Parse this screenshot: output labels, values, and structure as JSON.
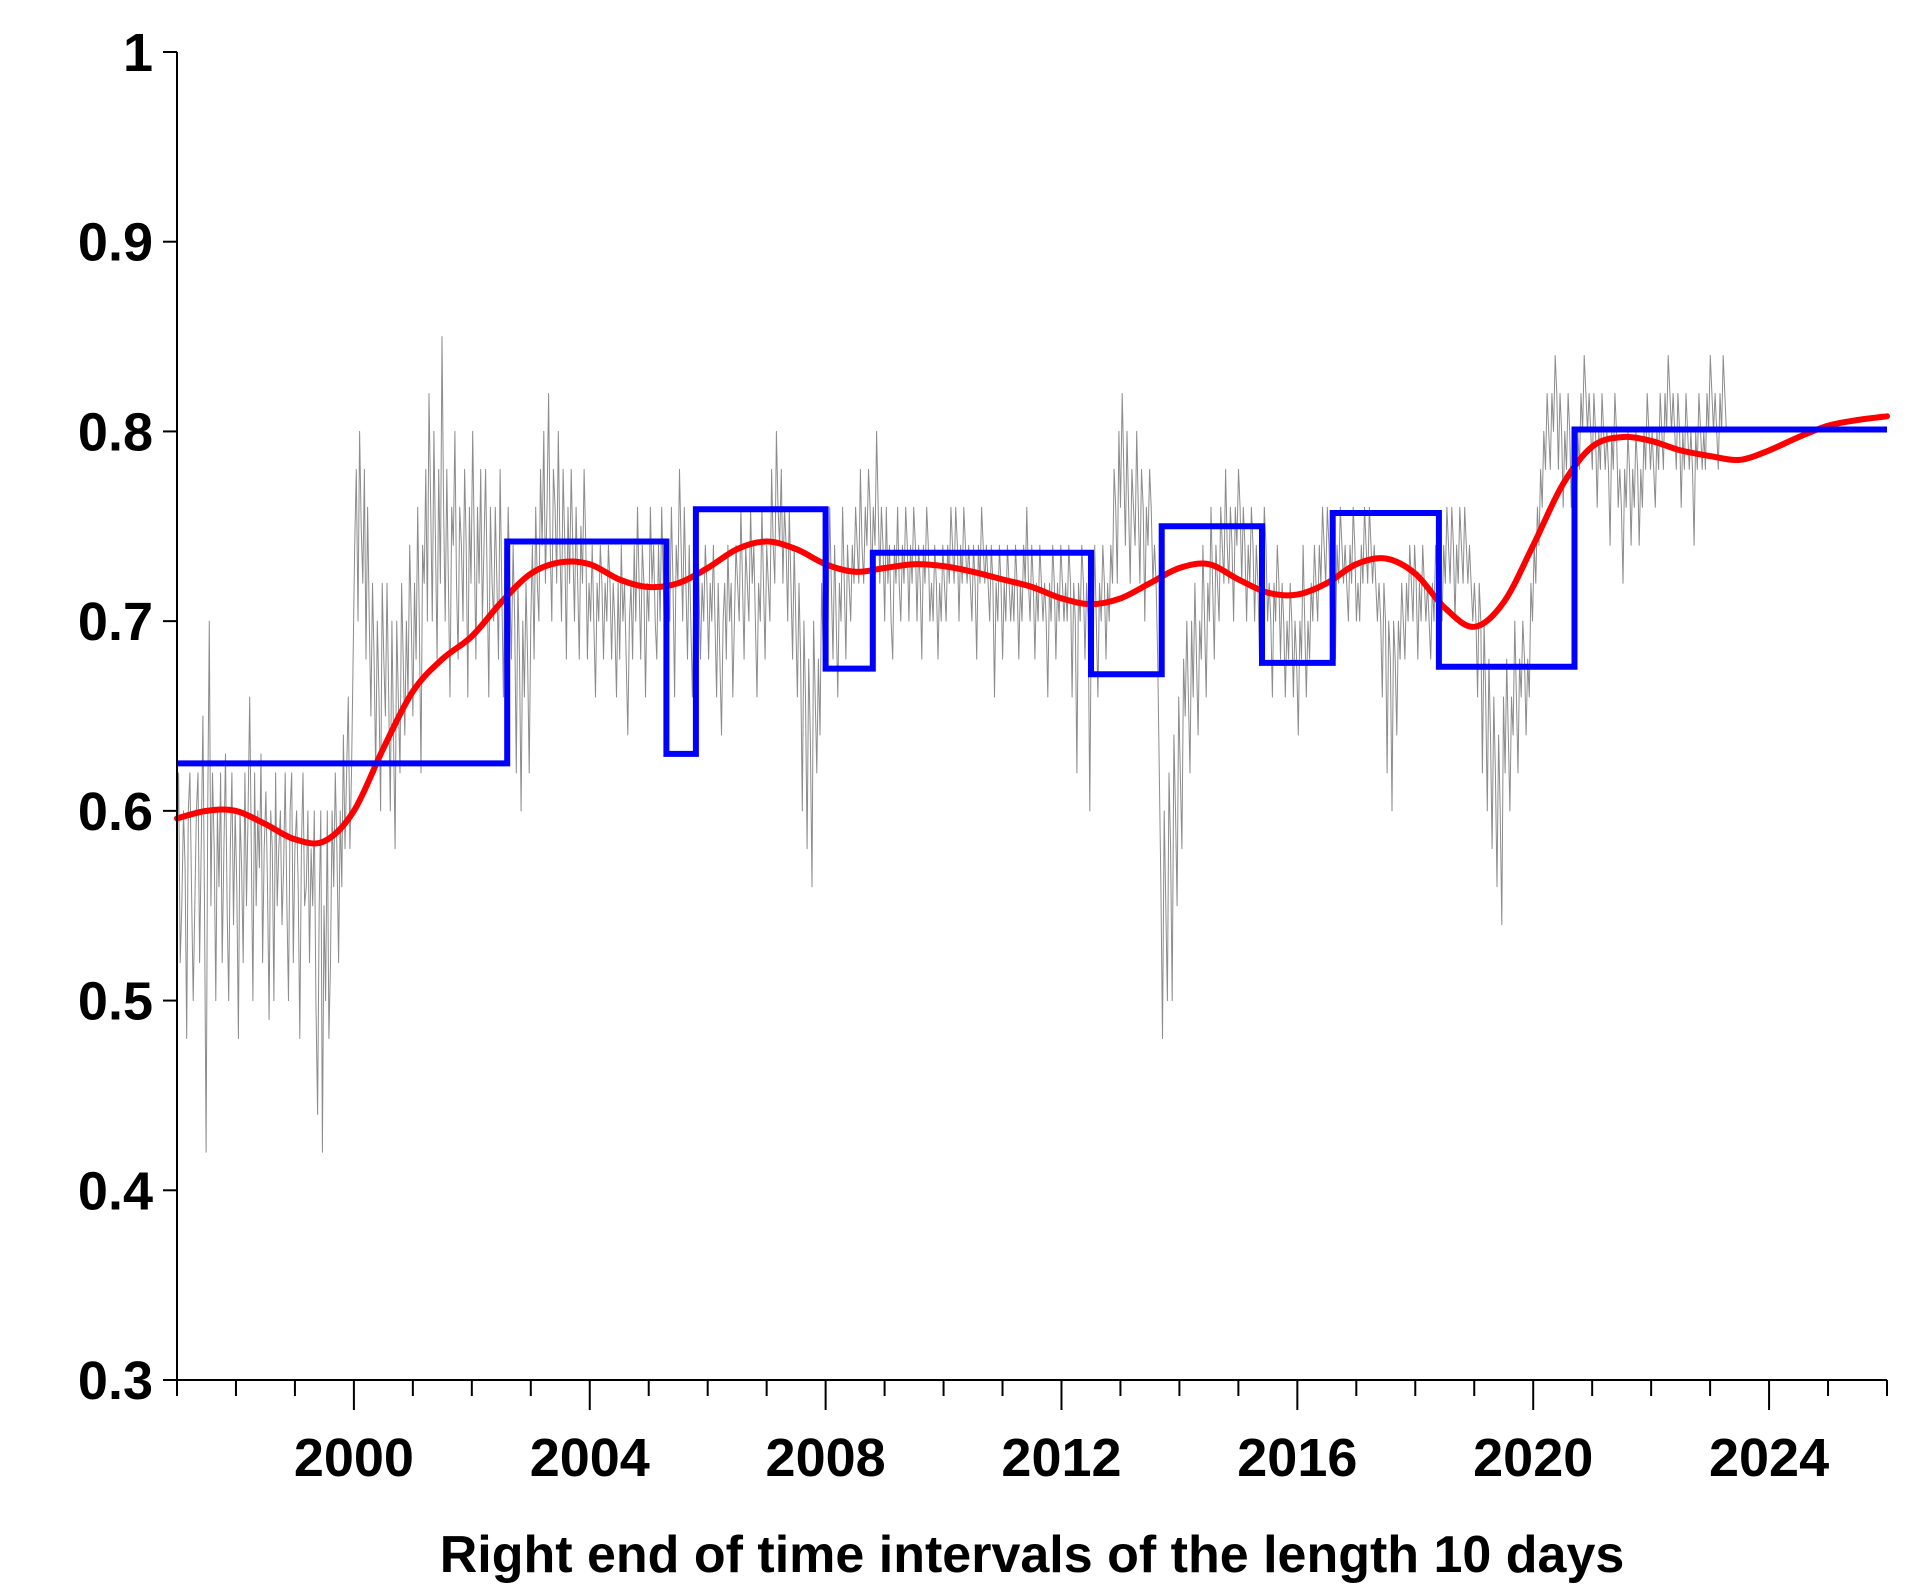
{
  "chart_data": {
    "type": "line",
    "title": "",
    "xlabel": "Right end of time intervals of the length 10 days",
    "ylabel": "",
    "xlim": [
      1997.0,
      2026.0
    ],
    "ylim": [
      0.3,
      1.0
    ],
    "grid": false,
    "legend": "none",
    "x_ticks": [
      2000,
      2004,
      2008,
      2012,
      2016,
      2020,
      2024
    ],
    "x_tick_labels": [
      "2000",
      "2004",
      "2008",
      "2012",
      "2016",
      "2020",
      "2024"
    ],
    "x_minor_step": 1,
    "y_ticks": [
      0.3,
      0.4,
      0.5,
      0.6,
      0.7,
      0.8,
      0.9,
      1.0
    ],
    "y_tick_labels": [
      "0.3",
      "0.4",
      "0.5",
      "0.6",
      "0.7",
      "0.8",
      "0.9",
      "1"
    ],
    "colors": {
      "raw": "#8c8c8c",
      "smooth": "#ff0000",
      "step": "#0000ff",
      "axis": "#000000"
    },
    "series": [
      {
        "kind": "raw",
        "color": "#8c8c8c",
        "x_start": 1997.0,
        "x_step": 0.0274,
        "values": [
          0.58,
          0.62,
          0.52,
          0.55,
          0.6,
          0.57,
          0.48,
          0.6,
          0.62,
          0.56,
          0.5,
          0.55,
          0.6,
          0.62,
          0.52,
          0.58,
          0.65,
          0.55,
          0.42,
          0.6,
          0.7,
          0.55,
          0.62,
          0.58,
          0.5,
          0.6,
          0.56,
          0.62,
          0.52,
          0.58,
          0.63,
          0.55,
          0.5,
          0.58,
          0.62,
          0.54,
          0.6,
          0.56,
          0.48,
          0.6,
          0.57,
          0.52,
          0.62,
          0.55,
          0.6,
          0.66,
          0.58,
          0.5,
          0.62,
          0.55,
          0.6,
          0.57,
          0.63,
          0.52,
          0.58,
          0.61,
          0.56,
          0.49,
          0.6,
          0.58,
          0.5,
          0.62,
          0.55,
          0.58,
          0.6,
          0.54,
          0.57,
          0.62,
          0.55,
          0.5,
          0.6,
          0.62,
          0.52,
          0.58,
          0.6,
          0.56,
          0.48,
          0.58,
          0.62,
          0.55,
          0.56,
          0.6,
          0.52,
          0.58,
          0.55,
          0.6,
          0.5,
          0.44,
          0.55,
          0.6,
          0.42,
          0.55,
          0.5,
          0.6,
          0.48,
          0.52,
          0.6,
          0.56,
          0.62,
          0.58,
          0.52,
          0.6,
          0.56,
          0.64,
          0.58,
          0.62,
          0.66,
          0.58,
          0.62,
          0.68,
          0.74,
          0.78,
          0.7,
          0.8,
          0.75,
          0.72,
          0.78,
          0.68,
          0.76,
          0.7,
          0.65,
          0.72,
          0.68,
          0.62,
          0.7,
          0.66,
          0.6,
          0.72,
          0.68,
          0.65,
          0.72,
          0.66,
          0.6,
          0.7,
          0.64,
          0.58,
          0.7,
          0.66,
          0.62,
          0.72,
          0.68,
          0.64,
          0.7,
          0.66,
          0.74,
          0.7,
          0.65,
          0.72,
          0.68,
          0.76,
          0.7,
          0.62,
          0.74,
          0.72,
          0.78,
          0.7,
          0.82,
          0.76,
          0.7,
          0.8,
          0.74,
          0.68,
          0.78,
          0.72,
          0.85,
          0.76,
          0.7,
          0.78,
          0.72,
          0.66,
          0.76,
          0.74,
          0.8,
          0.72,
          0.68,
          0.76,
          0.74,
          0.7,
          0.78,
          0.74,
          0.66,
          0.76,
          0.72,
          0.8,
          0.74,
          0.68,
          0.76,
          0.72,
          0.78,
          0.7,
          0.74,
          0.78,
          0.72,
          0.66,
          0.76,
          0.72,
          0.7,
          0.76,
          0.72,
          0.68,
          0.78,
          0.72,
          0.66,
          0.74,
          0.7,
          0.76,
          0.72,
          0.68,
          0.74,
          0.7,
          0.62,
          0.72,
          0.68,
          0.6,
          0.7,
          0.66,
          0.72,
          0.68,
          0.62,
          0.7,
          0.74,
          0.68,
          0.76,
          0.72,
          0.7,
          0.78,
          0.74,
          0.8,
          0.72,
          0.76,
          0.82,
          0.74,
          0.7,
          0.78,
          0.76,
          0.72,
          0.8,
          0.74,
          0.7,
          0.78,
          0.74,
          0.68,
          0.76,
          0.72,
          0.78,
          0.74,
          0.7,
          0.76,
          0.72,
          0.68,
          0.75,
          0.72,
          0.78,
          0.74,
          0.68,
          0.72,
          0.7,
          0.74,
          0.7,
          0.66,
          0.72,
          0.7,
          0.74,
          0.72,
          0.68,
          0.72,
          0.7,
          0.74,
          0.72,
          0.68,
          0.72,
          0.7,
          0.66,
          0.72,
          0.68,
          0.74,
          0.7,
          0.72,
          0.68,
          0.64,
          0.7,
          0.72,
          0.68,
          0.74,
          0.7,
          0.76,
          0.72,
          0.68,
          0.74,
          0.72,
          0.66,
          0.72,
          0.7,
          0.76,
          0.72,
          0.74,
          0.7,
          0.68,
          0.74,
          0.7,
          0.76,
          0.72,
          0.68,
          0.74,
          0.72,
          0.7,
          0.76,
          0.72,
          0.66,
          0.74,
          0.72,
          0.78,
          0.74,
          0.7,
          0.76,
          0.72,
          0.68,
          0.74,
          0.7,
          0.66,
          0.72,
          0.7,
          0.74,
          0.72,
          0.68,
          0.72,
          0.7,
          0.74,
          0.72,
          0.68,
          0.72,
          0.7,
          0.74,
          0.7,
          0.66,
          0.72,
          0.68,
          0.64,
          0.7,
          0.72,
          0.68,
          0.74,
          0.7,
          0.72,
          0.66,
          0.7,
          0.74,
          0.72,
          0.7,
          0.76,
          0.72,
          0.68,
          0.74,
          0.72,
          0.7,
          0.76,
          0.72,
          0.74,
          0.7,
          0.66,
          0.72,
          0.7,
          0.76,
          0.72,
          0.68,
          0.74,
          0.72,
          0.7,
          0.78,
          0.74,
          0.72,
          0.8,
          0.76,
          0.74,
          0.78,
          0.72,
          0.76,
          0.74,
          0.7,
          0.76,
          0.72,
          0.68,
          0.74,
          0.7,
          0.66,
          0.72,
          0.68,
          0.6,
          0.7,
          0.66,
          0.58,
          0.68,
          0.64,
          0.56,
          0.7,
          0.66,
          0.62,
          0.68,
          0.64,
          0.72,
          0.68,
          0.74,
          0.72,
          0.7,
          0.76,
          0.72,
          0.68,
          0.74,
          0.7,
          0.66,
          0.72,
          0.7,
          0.76,
          0.72,
          0.68,
          0.74,
          0.72,
          0.7,
          0.74,
          0.72,
          0.76,
          0.74,
          0.72,
          0.78,
          0.74,
          0.72,
          0.76,
          0.74,
          0.78,
          0.76,
          0.72,
          0.76,
          0.74,
          0.8,
          0.76,
          0.72,
          0.76,
          0.74,
          0.7,
          0.76,
          0.72,
          0.74,
          0.7,
          0.68,
          0.74,
          0.72,
          0.76,
          0.72,
          0.7,
          0.74,
          0.72,
          0.76,
          0.74,
          0.7,
          0.74,
          0.72,
          0.76,
          0.74,
          0.7,
          0.74,
          0.72,
          0.68,
          0.74,
          0.72,
          0.76,
          0.74,
          0.7,
          0.72,
          0.7,
          0.74,
          0.72,
          0.68,
          0.72,
          0.7,
          0.74,
          0.72,
          0.7,
          0.74,
          0.72,
          0.76,
          0.74,
          0.72,
          0.76,
          0.74,
          0.7,
          0.74,
          0.72,
          0.76,
          0.74,
          0.72,
          0.74,
          0.72,
          0.7,
          0.74,
          0.72,
          0.68,
          0.74,
          0.72,
          0.76,
          0.74,
          0.72,
          0.74,
          0.72,
          0.7,
          0.74,
          0.72,
          0.66,
          0.72,
          0.7,
          0.74,
          0.72,
          0.68,
          0.72,
          0.7,
          0.74,
          0.72,
          0.7,
          0.72,
          0.7,
          0.74,
          0.72,
          0.68,
          0.72,
          0.7,
          0.74,
          0.72,
          0.76,
          0.72,
          0.7,
          0.74,
          0.72,
          0.68,
          0.72,
          0.7,
          0.74,
          0.72,
          0.7,
          0.72,
          0.7,
          0.66,
          0.72,
          0.7,
          0.74,
          0.72,
          0.68,
          0.72,
          0.7,
          0.74,
          0.72,
          0.7,
          0.72,
          0.7,
          0.74,
          0.72,
          0.66,
          0.72,
          0.7,
          0.62,
          0.72,
          0.7,
          0.74,
          0.72,
          0.68,
          0.72,
          0.7,
          0.6,
          0.72,
          0.68,
          0.74,
          0.7,
          0.66,
          0.72,
          0.7,
          0.74,
          0.72,
          0.68,
          0.72,
          0.7,
          0.74,
          0.72,
          0.78,
          0.76,
          0.72,
          0.8,
          0.76,
          0.82,
          0.78,
          0.74,
          0.8,
          0.76,
          0.72,
          0.78,
          0.76,
          0.74,
          0.8,
          0.76,
          0.72,
          0.78,
          0.76,
          0.7,
          0.76,
          0.74,
          0.78,
          0.76,
          0.72,
          0.74,
          0.72,
          0.68,
          0.62,
          0.56,
          0.48,
          0.6,
          0.55,
          0.5,
          0.62,
          0.58,
          0.5,
          0.64,
          0.6,
          0.55,
          0.66,
          0.62,
          0.58,
          0.68,
          0.65,
          0.7,
          0.66,
          0.62,
          0.7,
          0.66,
          0.72,
          0.68,
          0.64,
          0.7,
          0.68,
          0.74,
          0.7,
          0.66,
          0.72,
          0.7,
          0.76,
          0.72,
          0.68,
          0.74,
          0.72,
          0.7,
          0.76,
          0.74,
          0.72,
          0.78,
          0.74,
          0.72,
          0.76,
          0.74,
          0.7,
          0.76,
          0.74,
          0.78,
          0.76,
          0.72,
          0.76,
          0.74,
          0.7,
          0.74,
          0.72,
          0.76,
          0.74,
          0.7,
          0.74,
          0.72,
          0.68,
          0.74,
          0.72,
          0.76,
          0.74,
          0.7,
          0.72,
          0.7,
          0.66,
          0.72,
          0.7,
          0.74,
          0.72,
          0.68,
          0.72,
          0.7,
          0.66,
          0.7,
          0.68,
          0.72,
          0.7,
          0.66,
          0.7,
          0.68,
          0.64,
          0.7,
          0.68,
          0.74,
          0.7,
          0.66,
          0.7,
          0.68,
          0.72,
          0.7,
          0.74,
          0.72,
          0.7,
          0.74,
          0.72,
          0.76,
          0.74,
          0.72,
          0.76,
          0.74,
          0.7,
          0.74,
          0.72,
          0.68,
          0.74,
          0.72,
          0.76,
          0.74,
          0.72,
          0.74,
          0.72,
          0.7,
          0.74,
          0.72,
          0.76,
          0.74,
          0.7,
          0.72,
          0.7,
          0.74,
          0.72,
          0.76,
          0.74,
          0.72,
          0.76,
          0.74,
          0.72,
          0.74,
          0.72,
          0.7,
          0.72,
          0.7,
          0.66,
          0.72,
          0.7,
          0.62,
          0.7,
          0.68,
          0.6,
          0.7,
          0.68,
          0.64,
          0.7,
          0.68,
          0.72,
          0.7,
          0.68,
          0.72,
          0.7,
          0.74,
          0.72,
          0.7,
          0.74,
          0.72,
          0.68,
          0.72,
          0.7,
          0.74,
          0.72,
          0.7,
          0.72,
          0.7,
          0.68,
          0.72,
          0.7,
          0.74,
          0.72,
          0.68,
          0.72,
          0.7,
          0.74,
          0.72,
          0.76,
          0.74,
          0.72,
          0.76,
          0.74,
          0.7,
          0.74,
          0.72,
          0.76,
          0.74,
          0.72,
          0.76,
          0.74,
          0.72,
          0.74,
          0.72,
          0.7,
          0.72,
          0.7,
          0.66,
          0.72,
          0.7,
          0.62,
          0.7,
          0.66,
          0.6,
          0.68,
          0.64,
          0.58,
          0.66,
          0.62,
          0.56,
          0.64,
          0.6,
          0.54,
          0.66,
          0.62,
          0.68,
          0.64,
          0.6,
          0.66,
          0.64,
          0.7,
          0.66,
          0.62,
          0.68,
          0.66,
          0.7,
          0.68,
          0.64,
          0.68,
          0.66,
          0.72,
          0.7,
          0.74,
          0.72,
          0.76,
          0.74,
          0.78,
          0.76,
          0.8,
          0.78,
          0.82,
          0.8,
          0.78,
          0.82,
          0.8,
          0.84,
          0.82,
          0.78,
          0.82,
          0.8,
          0.76,
          0.8,
          0.78,
          0.82,
          0.8,
          0.76,
          0.8,
          0.78,
          0.74,
          0.8,
          0.78,
          0.82,
          0.8,
          0.84,
          0.82,
          0.8,
          0.82,
          0.8,
          0.78,
          0.82,
          0.8,
          0.76,
          0.8,
          0.78,
          0.82,
          0.8,
          0.78,
          0.8,
          0.78,
          0.74,
          0.8,
          0.78,
          0.82,
          0.8,
          0.76,
          0.78,
          0.76,
          0.72,
          0.78,
          0.76,
          0.8,
          0.78,
          0.74,
          0.78,
          0.76,
          0.8,
          0.78,
          0.74,
          0.78,
          0.76,
          0.8,
          0.78,
          0.82,
          0.8,
          0.78,
          0.8,
          0.78,
          0.76,
          0.8,
          0.78,
          0.82,
          0.8,
          0.78,
          0.82,
          0.8,
          0.84,
          0.82,
          0.8,
          0.82,
          0.8,
          0.78,
          0.82,
          0.8,
          0.76,
          0.8,
          0.78,
          0.82,
          0.8,
          0.78,
          0.8,
          0.78,
          0.74,
          0.8,
          0.78,
          0.82,
          0.8,
          0.78,
          0.8,
          0.78,
          0.82,
          0.8,
          0.84,
          0.82,
          0.8,
          0.82,
          0.8,
          0.78,
          0.82,
          0.8,
          0.84,
          0.82,
          0.8
        ]
      },
      {
        "kind": "smooth",
        "color": "#ff0000",
        "x": [
          1997.0,
          1997.5,
          1998.0,
          1998.5,
          1999.0,
          1999.5,
          2000.0,
          2000.5,
          2001.0,
          2001.5,
          2002.0,
          2002.5,
          2003.0,
          2003.5,
          2004.0,
          2004.5,
          2005.0,
          2005.5,
          2006.0,
          2006.5,
          2007.0,
          2007.5,
          2008.0,
          2008.5,
          2009.0,
          2009.5,
          2010.0,
          2010.5,
          2011.0,
          2011.5,
          2012.0,
          2012.5,
          2013.0,
          2013.5,
          2014.0,
          2014.5,
          2015.0,
          2015.5,
          2016.0,
          2016.5,
          2017.0,
          2017.5,
          2018.0,
          2018.5,
          2019.0,
          2019.5,
          2020.0,
          2020.5,
          2021.0,
          2021.5,
          2022.0,
          2022.5,
          2023.0,
          2023.5,
          2024.0,
          2024.5,
          2025.0,
          2025.5,
          2026.0
        ],
        "values": [
          0.596,
          0.6,
          0.6,
          0.593,
          0.585,
          0.584,
          0.6,
          0.633,
          0.663,
          0.68,
          0.692,
          0.71,
          0.725,
          0.731,
          0.73,
          0.722,
          0.718,
          0.72,
          0.728,
          0.738,
          0.742,
          0.738,
          0.73,
          0.726,
          0.728,
          0.73,
          0.729,
          0.726,
          0.722,
          0.718,
          0.712,
          0.709,
          0.712,
          0.72,
          0.728,
          0.73,
          0.722,
          0.715,
          0.714,
          0.72,
          0.73,
          0.733,
          0.725,
          0.707,
          0.697,
          0.71,
          0.74,
          0.772,
          0.792,
          0.797,
          0.795,
          0.79,
          0.787,
          0.785,
          0.79,
          0.797,
          0.803,
          0.806,
          0.808
        ]
      },
      {
        "kind": "step",
        "color": "#0000ff",
        "breaks": [
          1997.0,
          2002.6,
          2005.3,
          2005.8,
          2008.0,
          2008.8,
          2012.5,
          2013.7,
          2015.4,
          2016.6,
          2018.4,
          2020.7,
          2026.0
        ],
        "levels": [
          0.625,
          0.742,
          0.63,
          0.759,
          0.675,
          0.736,
          0.672,
          0.75,
          0.678,
          0.757,
          0.676,
          0.801
        ]
      }
    ]
  }
}
